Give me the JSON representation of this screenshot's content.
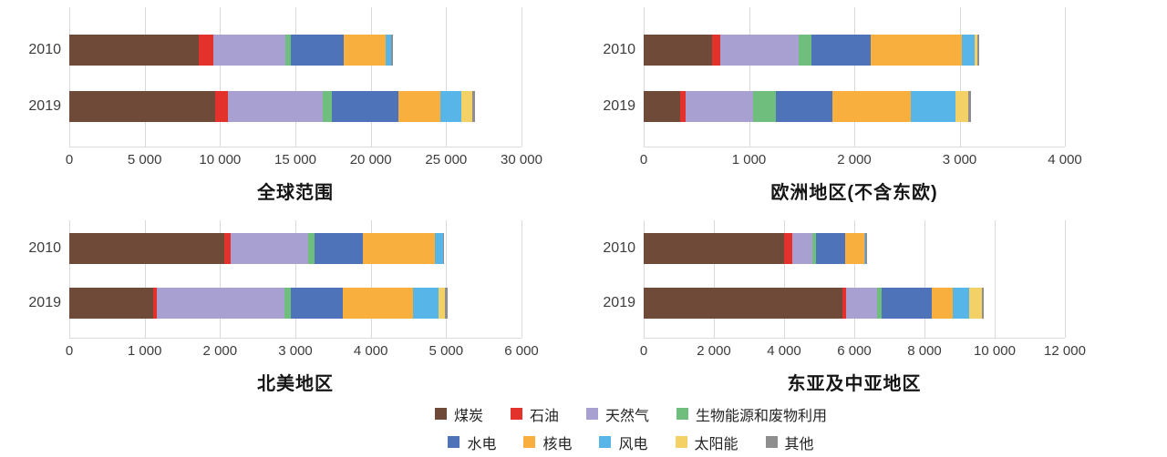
{
  "colors": {
    "煤炭": "#6F4A38",
    "石油": "#E3312B",
    "天然气": "#A9A0D2",
    "生物能源和废物利用": "#6FBE7D",
    "水电": "#4E73B9",
    "核电": "#F9AF3D",
    "风电": "#58B5E7",
    "太阳能": "#F4D166",
    "其他": "#8E8E8E"
  },
  "legend": {
    "rows": [
      [
        "煤炭",
        "石油",
        "天然气",
        "生物能源和废物利用"
      ],
      [
        "水电",
        "核电",
        "风电",
        "太阳能",
        "其他"
      ]
    ]
  },
  "chart_data": [
    {
      "type": "bar",
      "orientation": "horizontal",
      "stacked": true,
      "title": "全球范围",
      "categories": [
        "2010",
        "2019"
      ],
      "xlim": [
        0,
        30000
      ],
      "xticks": [
        0,
        5000,
        10000,
        15000,
        20000,
        25000,
        30000
      ],
      "xtick_labels": [
        "0",
        "5 000",
        "10 000",
        "15 000",
        "20 000",
        "25 000",
        "30 000"
      ],
      "grid": true,
      "series": [
        {
          "name": "煤炭",
          "values": [
            8600,
            9700
          ]
        },
        {
          "name": "石油",
          "values": [
            950,
            830
          ]
        },
        {
          "name": "天然气",
          "values": [
            4800,
            6300
          ]
        },
        {
          "name": "生物能源和废物利用",
          "values": [
            350,
            600
          ]
        },
        {
          "name": "水电",
          "values": [
            3500,
            4400
          ]
        },
        {
          "name": "核电",
          "values": [
            2800,
            2800
          ]
        },
        {
          "name": "风电",
          "values": [
            350,
            1400
          ]
        },
        {
          "name": "太阳能",
          "values": [
            30,
            700
          ]
        },
        {
          "name": "其他",
          "values": [
            100,
            200
          ]
        }
      ]
    },
    {
      "type": "bar",
      "orientation": "horizontal",
      "stacked": true,
      "title": "欧洲地区(不含东欧)",
      "categories": [
        "2010",
        "2019"
      ],
      "xlim": [
        0,
        4000
      ],
      "xticks": [
        0,
        1000,
        2000,
        3000,
        4000
      ],
      "xtick_labels": [
        "0",
        "1 000",
        "2 000",
        "3 000",
        "4 000"
      ],
      "grid": true,
      "series": [
        {
          "name": "煤炭",
          "values": [
            650,
            350
          ]
        },
        {
          "name": "石油",
          "values": [
            80,
            50
          ]
        },
        {
          "name": "天然气",
          "values": [
            740,
            640
          ]
        },
        {
          "name": "生物能源和废物利用",
          "values": [
            120,
            215
          ]
        },
        {
          "name": "水电",
          "values": [
            570,
            535
          ]
        },
        {
          "name": "核电",
          "values": [
            865,
            750
          ]
        },
        {
          "name": "风电",
          "values": [
            120,
            420
          ]
        },
        {
          "name": "太阳能",
          "values": [
            25,
            125
          ]
        },
        {
          "name": "其他",
          "values": [
            20,
            20
          ]
        }
      ]
    },
    {
      "type": "bar",
      "orientation": "horizontal",
      "stacked": true,
      "title": "北美地区",
      "categories": [
        "2010",
        "2019"
      ],
      "xlim": [
        0,
        6000
      ],
      "xticks": [
        0,
        1000,
        2000,
        3000,
        4000,
        5000,
        6000
      ],
      "xtick_labels": [
        "0",
        "1 000",
        "2 000",
        "3 000",
        "4 000",
        "5 000",
        "6 000"
      ],
      "grid": true,
      "series": [
        {
          "name": "煤炭",
          "values": [
            2060,
            1110
          ]
        },
        {
          "name": "石油",
          "values": [
            80,
            55
          ]
        },
        {
          "name": "天然气",
          "values": [
            1030,
            1690
          ]
        },
        {
          "name": "生物能源和废物利用",
          "values": [
            90,
            80
          ]
        },
        {
          "name": "水电",
          "values": [
            640,
            690
          ]
        },
        {
          "name": "核电",
          "values": [
            955,
            940
          ]
        },
        {
          "name": "风电",
          "values": [
            100,
            335
          ]
        },
        {
          "name": "太阳能",
          "values": [
            5,
            90
          ]
        },
        {
          "name": "其他",
          "values": [
            10,
            30
          ]
        }
      ]
    },
    {
      "type": "bar",
      "orientation": "horizontal",
      "stacked": true,
      "title": "东亚及中亚地区",
      "categories": [
        "2010",
        "2019"
      ],
      "xlim": [
        0,
        12000
      ],
      "xticks": [
        0,
        2000,
        4000,
        6000,
        8000,
        10000,
        12000
      ],
      "xtick_labels": [
        "0",
        "2 000",
        "4 000",
        "6 000",
        "8 000",
        "10 000",
        "12 000"
      ],
      "grid": true,
      "series": [
        {
          "name": "煤炭",
          "values": [
            4000,
            5670
          ]
        },
        {
          "name": "石油",
          "values": [
            230,
            90
          ]
        },
        {
          "name": "天然气",
          "values": [
            580,
            890
          ]
        },
        {
          "name": "生物能源和废物利用",
          "values": [
            90,
            130
          ]
        },
        {
          "name": "水电",
          "values": [
            830,
            1420
          ]
        },
        {
          "name": "核电",
          "values": [
            550,
            600
          ]
        },
        {
          "name": "风电",
          "values": [
            30,
            470
          ]
        },
        {
          "name": "太阳能",
          "values": [
            10,
            360
          ]
        },
        {
          "name": "其他",
          "values": [
            50,
            50
          ]
        }
      ]
    }
  ]
}
